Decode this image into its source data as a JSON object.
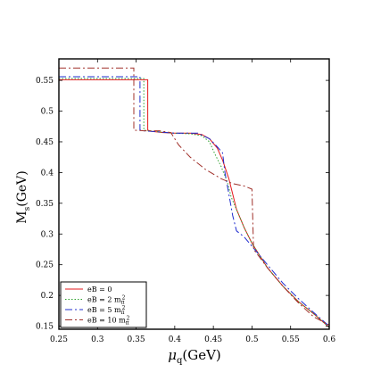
{
  "chart_data": {
    "type": "line",
    "title": "",
    "xlabel_sym": "μ",
    "xlabel_sub": "q",
    "xlabel_unit": "(GeV)",
    "ylabel_sym": "M",
    "ylabel_sub": "s",
    "ylabel_unit": "(GeV)",
    "xlim": [
      0.25,
      0.6
    ],
    "ylim": [
      0.145,
      0.585
    ],
    "xticks": [
      0.25,
      0.3,
      0.35,
      0.4,
      0.45,
      0.5,
      0.55,
      0.6
    ],
    "xtick_labels": [
      "0.25",
      "0.3",
      "0.35",
      "0.4",
      "0.45",
      "0.5",
      "0.55",
      "0.6"
    ],
    "yticks": [
      0.15,
      0.2,
      0.25,
      0.3,
      0.35,
      0.4,
      0.45,
      0.5,
      0.55
    ],
    "ytick_labels": [
      "0.15",
      "0.2",
      "0.25",
      "0.3",
      "0.35",
      "0.4",
      "0.45",
      "0.5",
      "0.55"
    ],
    "legend_position": "bottom-left",
    "grid": false,
    "series": [
      {
        "name": "eB = 0",
        "name_main": "eB = 0",
        "name_sup": "",
        "color": "#e41a1c",
        "dash": "",
        "x": [
          0.25,
          0.365,
          0.365,
          0.37,
          0.385,
          0.4,
          0.42,
          0.435,
          0.445,
          0.455,
          0.462,
          0.47,
          0.475,
          0.48,
          0.49,
          0.5,
          0.51,
          0.52,
          0.54,
          0.56,
          0.58,
          0.6
        ],
        "y": [
          0.551,
          0.551,
          0.469,
          0.467,
          0.465,
          0.464,
          0.464,
          0.462,
          0.455,
          0.44,
          0.42,
          0.39,
          0.365,
          0.34,
          0.31,
          0.285,
          0.265,
          0.245,
          0.215,
          0.19,
          0.17,
          0.148
        ]
      },
      {
        "name": "eB = 2 mπ²",
        "name_main": "eB = 2 m",
        "name_sup": "2",
        "color": "#2ca02c",
        "dash": "1.5,2",
        "x": [
          0.25,
          0.36,
          0.36,
          0.365,
          0.38,
          0.4,
          0.42,
          0.435,
          0.445,
          0.452,
          0.46,
          0.468,
          0.473,
          0.48,
          0.49,
          0.5,
          0.51,
          0.52,
          0.54,
          0.56,
          0.58,
          0.6
        ],
        "y": [
          0.553,
          0.553,
          0.469,
          0.468,
          0.466,
          0.464,
          0.463,
          0.46,
          0.45,
          0.43,
          0.41,
          0.385,
          0.36,
          0.34,
          0.31,
          0.285,
          0.265,
          0.245,
          0.215,
          0.19,
          0.17,
          0.148
        ]
      },
      {
        "name": "eB = 5 mπ²",
        "name_main": "eB = 5 m",
        "name_sup": "2",
        "color": "#1f2ccf",
        "dash": "8,3,2,3",
        "x": [
          0.25,
          0.355,
          0.355,
          0.36,
          0.38,
          0.4,
          0.43,
          0.445,
          0.455,
          0.462,
          0.465,
          0.47,
          0.475,
          0.48,
          0.49,
          0.5,
          0.51,
          0.52,
          0.54,
          0.56,
          0.58,
          0.6
        ],
        "y": [
          0.556,
          0.556,
          0.469,
          0.468,
          0.466,
          0.464,
          0.464,
          0.455,
          0.442,
          0.432,
          0.4,
          0.365,
          0.33,
          0.305,
          0.295,
          0.28,
          0.265,
          0.25,
          0.22,
          0.195,
          0.172,
          0.15
        ]
      },
      {
        "name": "eB = 10 mπ²",
        "name_main": "eB = 10 m",
        "name_sup": "2",
        "color": "#a0302a",
        "dash": "8,3,2,3",
        "x": [
          0.25,
          0.347,
          0.347,
          0.36,
          0.38,
          0.395,
          0.405,
          0.42,
          0.44,
          0.46,
          0.475,
          0.49,
          0.5,
          0.502,
          0.51,
          0.52,
          0.54,
          0.56,
          0.58,
          0.6
        ],
        "y": [
          0.57,
          0.57,
          0.469,
          0.468,
          0.468,
          0.465,
          0.445,
          0.425,
          0.405,
          0.39,
          0.382,
          0.378,
          0.373,
          0.275,
          0.262,
          0.245,
          0.215,
          0.188,
          0.165,
          0.152
        ]
      }
    ]
  }
}
